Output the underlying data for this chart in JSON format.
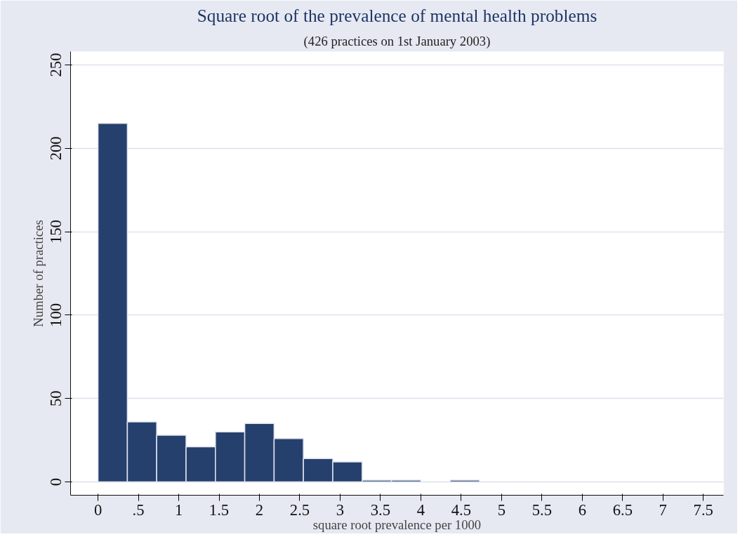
{
  "chart_data": {
    "type": "histogram",
    "title": "Square root of the prevalence of mental health problems",
    "subtitle": "(426 practices on 1st January 2003)",
    "xlabel": "square root prevalence per 1000",
    "ylabel": "Number of practices",
    "bins": [
      0,
      0.364,
      0.727,
      1.091,
      1.455,
      1.818,
      2.182,
      2.545,
      2.909,
      3.273,
      3.636,
      4.0,
      4.364,
      4.727
    ],
    "values": [
      215,
      36,
      28,
      21,
      30,
      35,
      26,
      14,
      12,
      1,
      1,
      0,
      1
    ],
    "color": "#26406d",
    "xlim": [
      -0.34,
      7.75
    ],
    "ylim": [
      -8,
      258
    ],
    "xticks": [
      0,
      {
        "value": 0.5,
        "label": ".5"
      },
      1,
      1.5,
      2,
      2.5,
      3,
      3.5,
      4,
      4.5,
      5,
      5.5,
      6,
      6.5,
      7,
      7.5
    ],
    "yticks": [
      0,
      50,
      100,
      150,
      200,
      250
    ],
    "grid": "y"
  }
}
